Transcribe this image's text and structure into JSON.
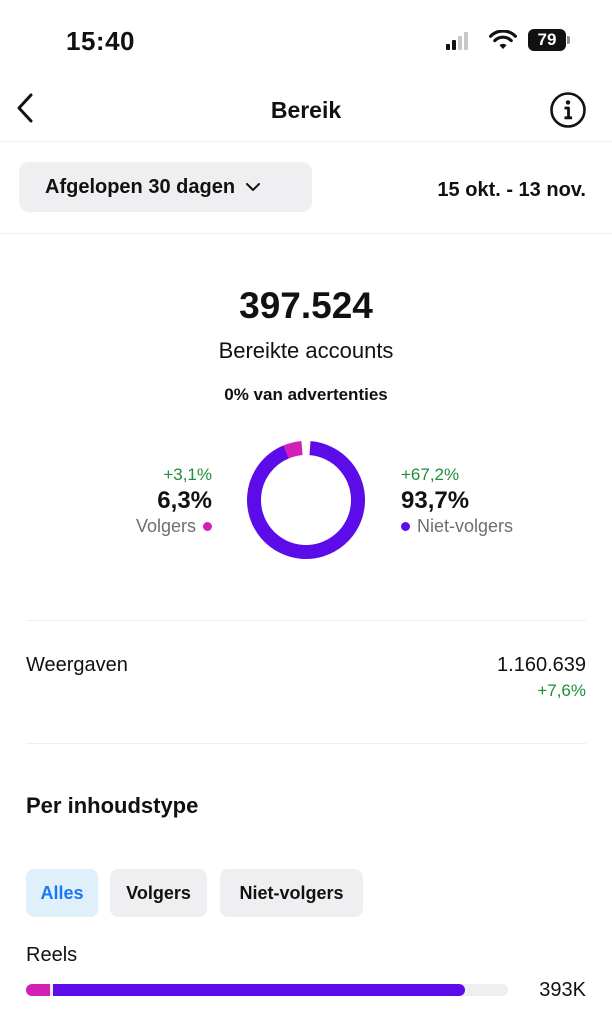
{
  "status_bar": {
    "time": "15:40",
    "battery": "79"
  },
  "header": {
    "title": "Bereik"
  },
  "filter": {
    "period": "Afgelopen 30 dagen",
    "date_range": "15 okt. - 13 nov."
  },
  "summary": {
    "reached": "397.524",
    "reached_label": "Bereikte accounts",
    "ads_label": "0% van advertenties"
  },
  "breakdown": {
    "followers": {
      "delta": "+3,1%",
      "value": "6,3%",
      "label": "Volgers",
      "fraction": 0.063,
      "color": "#d21fb8"
    },
    "non_followers": {
      "delta": "+67,2%",
      "value": "93,7%",
      "label": "Niet-volgers",
      "fraction": 0.937,
      "color": "#5b0ce8"
    }
  },
  "views": {
    "label": "Weergaven",
    "value": "1.160.639",
    "delta": "+7,6%"
  },
  "content_type": {
    "title": "Per inhoudstype",
    "chips": [
      "Alles",
      "Volgers",
      "Niet-volgers"
    ],
    "active_chip": "Alles",
    "rows": [
      {
        "label": "Reels",
        "value": "393K",
        "followers_fraction": 0.05,
        "non_followers_fraction": 0.86
      }
    ]
  },
  "colors": {
    "accent": "#1877f2",
    "positive": "#1f8f3a",
    "followers": "#d21fb8",
    "non_followers": "#5b0ce8"
  },
  "icons": [
    "back-chevron-icon",
    "info-icon",
    "chevron-down-icon",
    "signal-icon",
    "wifi-icon",
    "battery-icon"
  ]
}
